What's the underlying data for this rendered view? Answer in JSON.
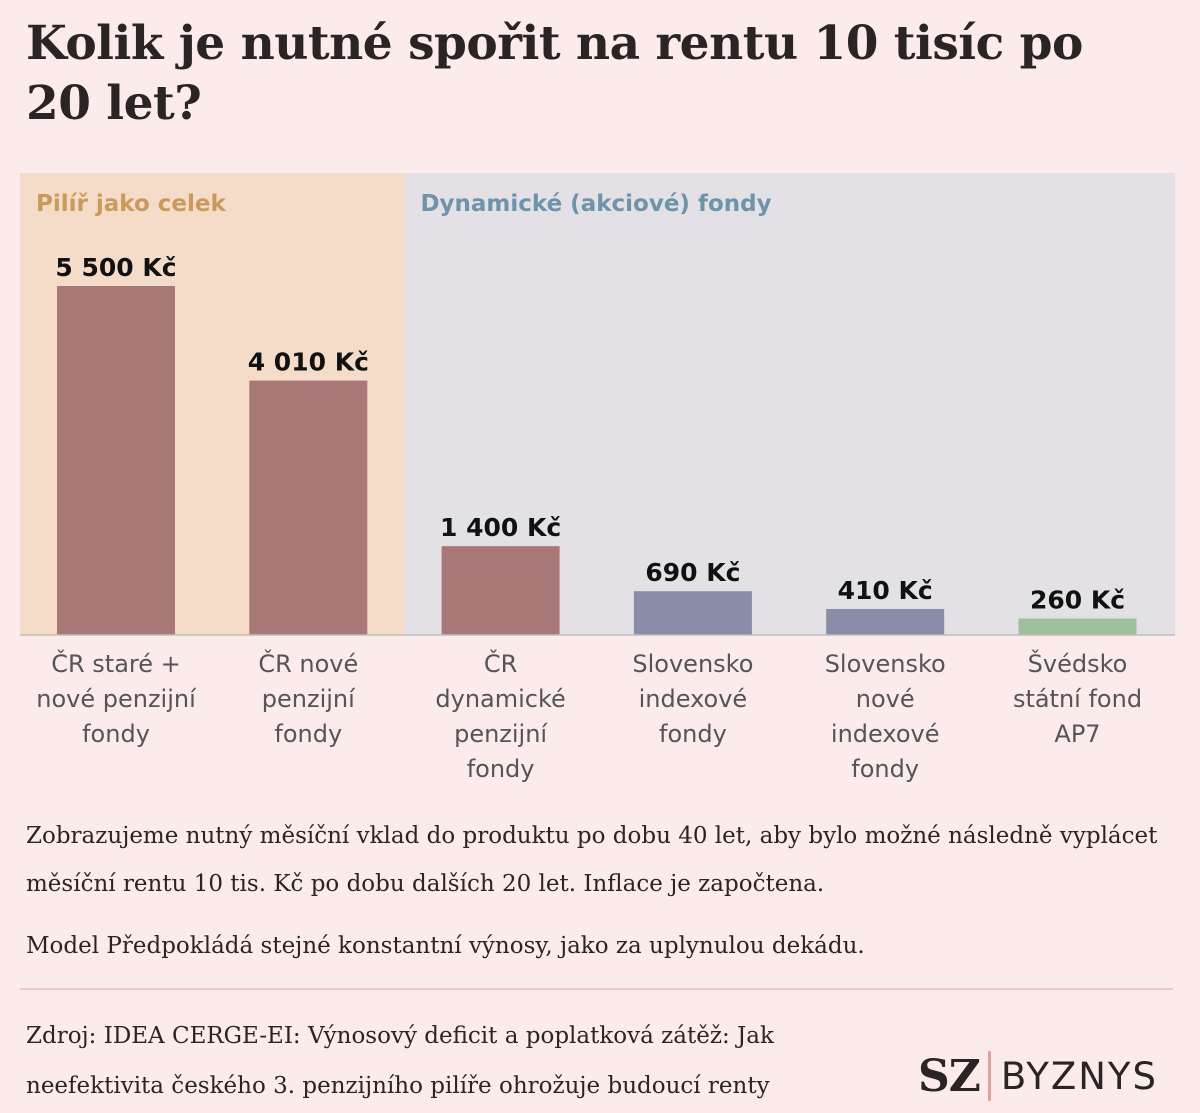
{
  "title": "Kolik je nutné spořit na rentu 10 tisíc po 20 let?",
  "chart_data": {
    "type": "bar",
    "title": "Kolik je nutné spořit na rentu 10 tisíc po 20 let?",
    "xlabel": "",
    "ylabel": "",
    "groups": [
      {
        "label": "Pilíř jako celek",
        "color": "#c99a5b",
        "background": "#f5dcc8",
        "categories": [
          0,
          1
        ]
      },
      {
        "label": "Dynamické (akciové) fondy",
        "color": "#6f93ab",
        "background": "#e3e1e5",
        "categories": [
          2,
          3,
          4,
          5
        ]
      }
    ],
    "categories": [
      [
        "ČR staré +",
        "nové penzijní",
        "fondy"
      ],
      [
        "ČR nové",
        "penzijní",
        "fondy"
      ],
      [
        "ČR",
        "dynamické",
        "penzijní",
        "fondy"
      ],
      [
        "Slovensko",
        "indexové",
        "fondy"
      ],
      [
        "Slovensko",
        "nové",
        "indexové",
        "fondy"
      ],
      [
        "Švédsko",
        "státní fond",
        "AP7"
      ]
    ],
    "values": [
      5500,
      4010,
      1400,
      690,
      410,
      260
    ],
    "value_labels": [
      "5 500 Kč",
      "4 010 Kč",
      "1 400 Kč",
      "690 Kč",
      "410 Kč",
      "260 Kč"
    ],
    "bar_colors": [
      "#a87878",
      "#a87878",
      "#a87878",
      "#8a8ca8",
      "#8a8ca8",
      "#9cc09c"
    ],
    "ylim": [
      0,
      5500
    ],
    "grid": false,
    "legend": "none"
  },
  "notes": {
    "line1": "Zobrazujeme nutný měsíční vklad do produktu po dobu 40 let, aby bylo možné následně vyplácet měsíční rentu 10 tis. Kč po dobu dalších 20 let. Inflace je započtena.",
    "line2": "Model Předpokládá stejné konstantní výnosy, jako za uplynulou dekádu."
  },
  "source": "Zdroj: IDEA CERGE-EI: Výnosový deficit a poplatková zátěž: Jak neefektivita českého 3. penzijního pilíře ohrožuje budoucí renty",
  "logo": {
    "sz": "SZ",
    "byznys": "BYZNYS"
  }
}
